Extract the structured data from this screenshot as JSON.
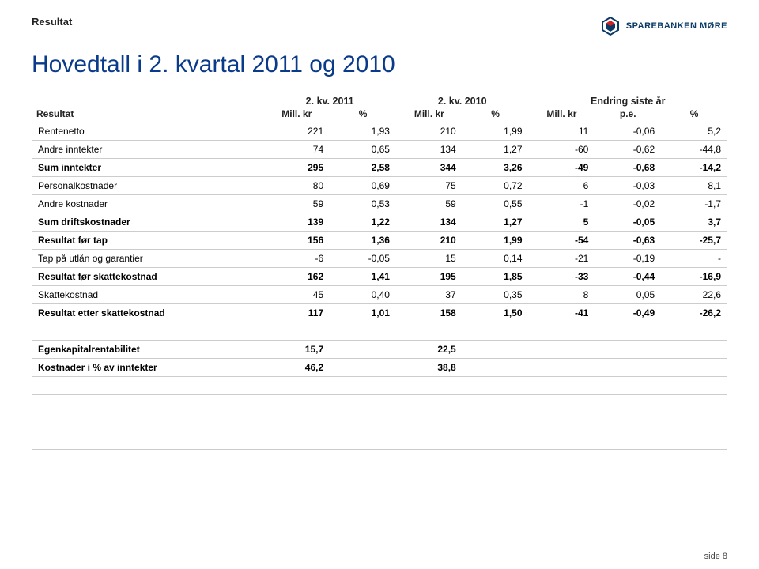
{
  "header": {
    "section_label": "Resultat",
    "brand_text": "SPAREBANKEN MØRE"
  },
  "title": "Hovedtall i 2. kvartal 2011 og 2010",
  "table": {
    "group_headers": [
      "2. kv. 2011",
      "2. kv. 2010",
      "Endring siste år"
    ],
    "sub_left": "Resultat",
    "sub_headers": [
      "Mill. kr",
      "%",
      "Mill. kr",
      "%",
      "Mill. kr",
      "p.e.",
      "%"
    ],
    "rows": [
      {
        "label": "Rentenetto",
        "c": [
          "221",
          "1,93",
          "210",
          "1,99",
          "11",
          "-0,06",
          "5,2"
        ],
        "bold": false
      },
      {
        "label": "Andre inntekter",
        "c": [
          "74",
          "0,65",
          "134",
          "1,27",
          "-60",
          "-0,62",
          "-44,8"
        ],
        "bold": false
      },
      {
        "label": "Sum inntekter",
        "c": [
          "295",
          "2,58",
          "344",
          "3,26",
          "-49",
          "-0,68",
          "-14,2"
        ],
        "bold": true
      },
      {
        "label": "Personalkostnader",
        "c": [
          "80",
          "0,69",
          "75",
          "0,72",
          "6",
          "-0,03",
          "8,1"
        ],
        "bold": false
      },
      {
        "label": "Andre kostnader",
        "c": [
          "59",
          "0,53",
          "59",
          "0,55",
          "-1",
          "-0,02",
          "-1,7"
        ],
        "bold": false
      },
      {
        "label": "Sum driftskostnader",
        "c": [
          "139",
          "1,22",
          "134",
          "1,27",
          "5",
          "-0,05",
          "3,7"
        ],
        "bold": true
      },
      {
        "label": "Resultat før tap",
        "c": [
          "156",
          "1,36",
          "210",
          "1,99",
          "-54",
          "-0,63",
          "-25,7"
        ],
        "bold": true
      },
      {
        "label": "Tap på utlån og garantier",
        "c": [
          "-6",
          "-0,05",
          "15",
          "0,14",
          "-21",
          "-0,19",
          "-"
        ],
        "bold": false
      },
      {
        "label": "Resultat før skattekostnad",
        "c": [
          "162",
          "1,41",
          "195",
          "1,85",
          "-33",
          "-0,44",
          "-16,9"
        ],
        "bold": true
      },
      {
        "label": "Skattekostnad",
        "c": [
          "45",
          "0,40",
          "37",
          "0,35",
          "8",
          "0,05",
          "22,6"
        ],
        "bold": false
      },
      {
        "label": "Resultat etter skattekostnad",
        "c": [
          "117",
          "1,01",
          "158",
          "1,50",
          "-41",
          "-0,49",
          "-26,2"
        ],
        "bold": true
      }
    ],
    "ratios": [
      {
        "label": "Egenkapitalrentabilitet",
        "v1": "15,7",
        "v2": "22,5"
      },
      {
        "label": "Kostnader i % av inntekter",
        "v1": "46,2",
        "v2": "38,8"
      }
    ],
    "trailing_blank_rows": 4
  },
  "footer": "side 8",
  "colors": {
    "title": "#0a3a8a",
    "brand": "#0a3a66",
    "border": "#cccccc",
    "text": "#222222"
  }
}
